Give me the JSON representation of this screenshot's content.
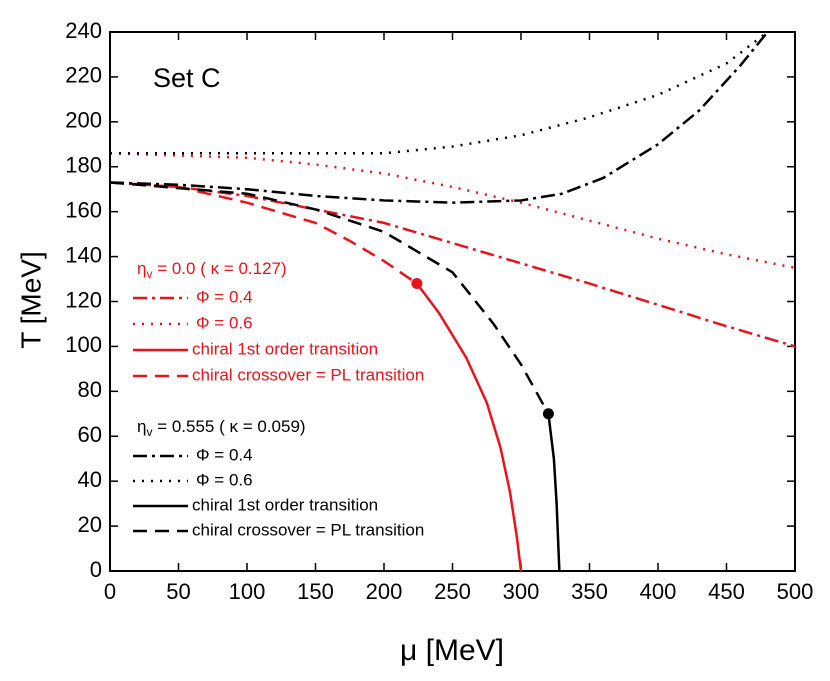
{
  "chart_data": {
    "type": "line",
    "annotation": "Set C",
    "x_label": "μ [MeV]",
    "y_label": "T [MeV]",
    "xlim": [
      0,
      500
    ],
    "ylim": [
      0,
      240
    ],
    "xticks": [
      0,
      50,
      100,
      150,
      200,
      250,
      300,
      350,
      400,
      450,
      500
    ],
    "yticks": [
      0,
      20,
      40,
      60,
      80,
      100,
      120,
      140,
      160,
      180,
      200,
      220,
      240
    ],
    "legend_titles": [
      {
        "symbol": "η",
        "sub": "v",
        "text": " = 0.0 (  κ = 0.127)",
        "color": "#e8141c"
      },
      {
        "symbol": "η",
        "sub": "v",
        "text": " = 0.555 (  κ = 0.059)",
        "color": "#000000"
      }
    ],
    "series": [
      {
        "name": "Φ = 0.4",
        "color": "#e8141c",
        "style": "dashdot",
        "x": [
          0,
          50,
          100,
          150,
          200,
          250,
          300,
          350,
          400,
          450,
          500
        ],
        "values": [
          173,
          171,
          167,
          161,
          155,
          146,
          137,
          128,
          118.5,
          109,
          100
        ]
      },
      {
        "name": "Φ = 0.6",
        "color": "#e8141c",
        "style": "dot",
        "x": [
          0,
          50,
          100,
          150,
          200,
          250,
          300,
          350,
          400,
          450,
          500
        ],
        "values": [
          186,
          185,
          184,
          181,
          177,
          171,
          164,
          156,
          148,
          141,
          135
        ]
      },
      {
        "name": "chiral 1st order transition",
        "color": "#e8141c",
        "style": "solid",
        "x": [
          224,
          240,
          260,
          275,
          285,
          292,
          297,
          299,
          300
        ],
        "values": [
          128,
          115,
          95,
          75,
          55,
          35,
          15,
          5,
          0
        ]
      },
      {
        "name": "chiral crossover = PL transition",
        "color": "#e8141c",
        "style": "dash",
        "x": [
          0,
          50,
          100,
          150,
          175,
          200,
          224
        ],
        "values": [
          173,
          171,
          164,
          155,
          147,
          138,
          128
        ]
      },
      {
        "name": "Φ = 0.4",
        "color": "#000000",
        "style": "dashdot",
        "x": [
          0,
          50,
          100,
          150,
          200,
          250,
          300,
          330,
          360,
          400,
          430,
          460,
          480
        ],
        "values": [
          173,
          172,
          170,
          167,
          165,
          164,
          165,
          168,
          175,
          190,
          205,
          225,
          240
        ]
      },
      {
        "name": "Φ = 0.6",
        "color": "#000000",
        "style": "dot",
        "x": [
          0,
          100,
          150,
          200,
          250,
          300,
          350,
          400,
          450,
          480
        ],
        "values": [
          186,
          186,
          186,
          186,
          189,
          194,
          202,
          212,
          226,
          240
        ]
      },
      {
        "name": "chiral 1st order transition",
        "color": "#000000",
        "style": "solid",
        "x": [
          320,
          324,
          326,
          327,
          328
        ],
        "values": [
          70,
          50,
          30,
          15,
          0
        ]
      },
      {
        "name": "chiral crossover = PL transition",
        "color": "#000000",
        "style": "dash",
        "x": [
          0,
          100,
          150,
          200,
          250,
          280,
          300,
          320
        ],
        "values": [
          173,
          168,
          161,
          151,
          133,
          110,
          92,
          70
        ]
      }
    ],
    "critical_points": {
      "x": [
        224,
        320
      ],
      "values": [
        128,
        70
      ],
      "colors": [
        "#e8141c",
        "#000000"
      ]
    }
  }
}
